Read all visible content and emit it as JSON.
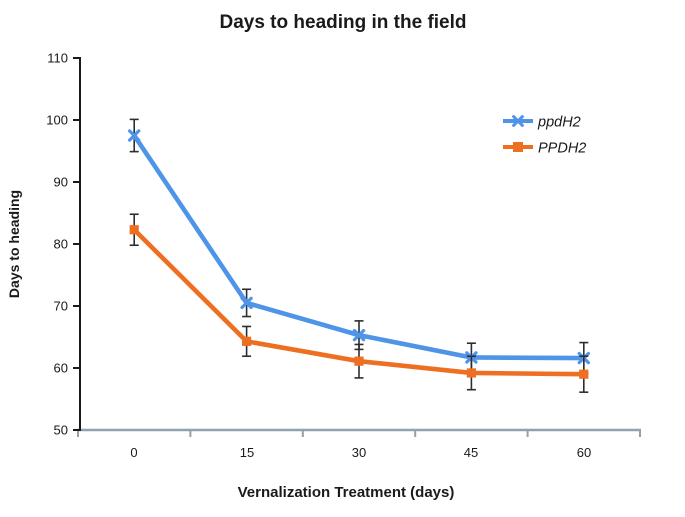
{
  "chart_data": {
    "type": "line",
    "title": "Days to heading in the field",
    "xlabel": "Vernalization Treatment (days)",
    "ylabel": "Days to heading",
    "categories": [
      "0",
      "15",
      "30",
      "45",
      "60"
    ],
    "yticks": [
      "110",
      "100",
      "90",
      "80",
      "70",
      "60",
      "50"
    ],
    "ylim": [
      50,
      110
    ],
    "ytick_step": 10,
    "grid": false,
    "legend_position": "inside-top-right",
    "error_bars": true,
    "series": [
      {
        "name": "ppdH2",
        "color": "#4E94E8",
        "marker": "x",
        "values": [
          97.5,
          70.5,
          65.3,
          61.7,
          61.6
        ],
        "errors": [
          2.6,
          2.2,
          2.3,
          2.3,
          2.5
        ]
      },
      {
        "name": "PPDH2",
        "color": "#EE6F22",
        "marker": "square",
        "values": [
          82.3,
          64.3,
          61.1,
          59.2,
          59.0
        ],
        "errors": [
          2.5,
          2.4,
          2.7,
          2.7,
          2.9
        ]
      }
    ],
    "colors": {
      "y_axis": "#1a1a1a",
      "x_axis": "#8fa2ae",
      "error_bar": "#2e2e2e",
      "background": "#ffffff"
    }
  }
}
